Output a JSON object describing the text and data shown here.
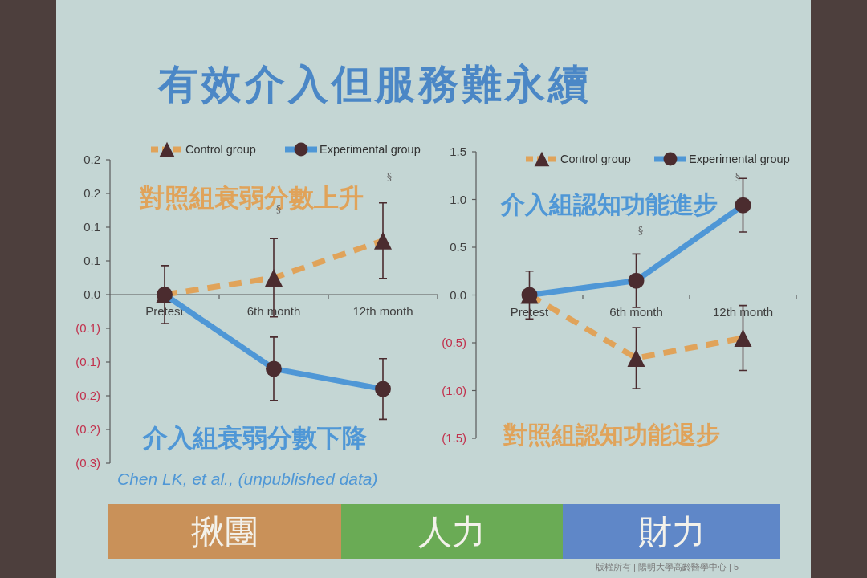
{
  "chart_data": [
    {
      "type": "line",
      "title": "有效介入但服務難永續",
      "categories": [
        "Pretest",
        "6th month",
        "12th month"
      ],
      "series": [
        {
          "name": "Control group",
          "color": "#e0a35a",
          "values": [
            0,
            0.025,
            0.08
          ],
          "errors": [
            0.043,
            0.058,
            0.056
          ],
          "marker": "triangle",
          "line_style": "dashed"
        },
        {
          "name": "Experimental group",
          "color": "#4f97d6",
          "values": [
            0,
            -0.11,
            -0.14
          ],
          "errors": [
            null,
            0.047,
            0.045
          ],
          "marker": "circle",
          "line_style": "solid"
        }
      ],
      "ylim": [
        -0.25,
        0.2
      ],
      "yticks": [
        {
          "value": 0.2,
          "label": "0.2"
        },
        {
          "value": 0.15,
          "label": "0.2"
        },
        {
          "value": 0.1,
          "label": "0.1"
        },
        {
          "value": 0.05,
          "label": "0.1"
        },
        {
          "value": 0,
          "label": "0.0"
        },
        {
          "value": -0.05,
          "label": "(0.1)"
        },
        {
          "value": -0.1,
          "label": "(0.1)"
        },
        {
          "value": -0.15,
          "label": "(0.2)"
        },
        {
          "value": -0.2,
          "label": "(0.2)"
        },
        {
          "value": -0.25,
          "label": "(0.3)"
        }
      ],
      "legend": "top",
      "annotations": [
        "對照組衰弱分數上升",
        "介入組衰弱分數下降",
        "Chen LK, et al., (unpublished data)",
        "§",
        "§"
      ]
    },
    {
      "type": "line",
      "categories": [
        "Pretest",
        "6th month",
        "12th month"
      ],
      "series": [
        {
          "name": "Control group",
          "color": "#e0a35a",
          "values": [
            0,
            -0.66,
            -0.45
          ],
          "errors": [
            0.25,
            0.32,
            0.34
          ],
          "marker": "triangle",
          "line_style": "dashed"
        },
        {
          "name": "Experimental group",
          "color": "#4f97d6",
          "values": [
            0,
            0.15,
            0.94
          ],
          "errors": [
            null,
            0.28,
            0.28
          ],
          "marker": "circle",
          "line_style": "solid"
        }
      ],
      "ylim": [
        -1.5,
        1.5
      ],
      "yticks": [
        {
          "value": 1.5,
          "label": "1.5"
        },
        {
          "value": 1,
          "label": "1.0"
        },
        {
          "value": 0.5,
          "label": "0.5"
        },
        {
          "value": 0,
          "label": "0.0"
        },
        {
          "value": -0.5,
          "label": "(0.5)"
        },
        {
          "value": -1,
          "label": "(1.0)"
        },
        {
          "value": -1.5,
          "label": "(1.5)"
        }
      ],
      "legend": "top",
      "annotations": [
        "介入組認知功能進步",
        "對照組認知功能退步",
        "§",
        "§"
      ]
    },
    {
      "type": "other",
      "colors": [
        "#c99159",
        "#6aab55",
        "#5f87c8"
      ],
      "annotations": [
        "揪團",
        "人力",
        "財力",
        "版權所有 | 陽明大學高齡醫學中心 | 5"
      ]
    }
  ]
}
